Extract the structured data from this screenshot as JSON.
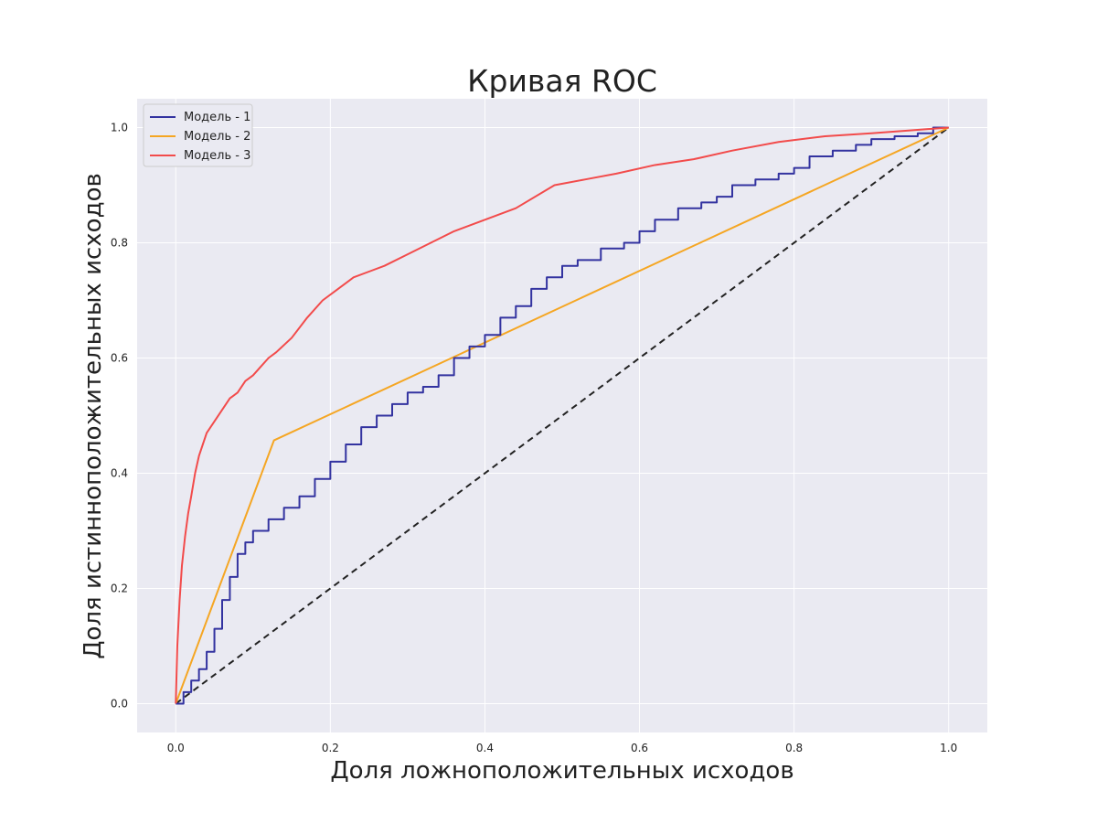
{
  "chart_data": {
    "type": "line",
    "title": "Кривая ROC",
    "xlabel": "Доля ложноположительных исходов",
    "ylabel": "Доля истинноположительных исходов",
    "xlim": [
      -0.05,
      1.05
    ],
    "ylim": [
      -0.05,
      1.05
    ],
    "x_ticks": [
      "0.0",
      "0.2",
      "0.4",
      "0.6",
      "0.8",
      "1.0"
    ],
    "y_ticks": [
      "0.0",
      "0.2",
      "0.4",
      "0.6",
      "0.8",
      "1.0"
    ],
    "grid": true,
    "legend_position": "top-left",
    "background_color": "#eaeaf2",
    "series": [
      {
        "name": "Модель - 1",
        "color": "#3333a0",
        "step": true,
        "x": [
          0.0,
          0.01,
          0.02,
          0.03,
          0.04,
          0.05,
          0.06,
          0.07,
          0.08,
          0.09,
          0.1,
          0.12,
          0.14,
          0.16,
          0.18,
          0.2,
          0.22,
          0.24,
          0.26,
          0.28,
          0.3,
          0.32,
          0.34,
          0.36,
          0.38,
          0.4,
          0.42,
          0.44,
          0.46,
          0.48,
          0.5,
          0.52,
          0.55,
          0.58,
          0.6,
          0.62,
          0.65,
          0.68,
          0.7,
          0.72,
          0.75,
          0.78,
          0.8,
          0.82,
          0.85,
          0.88,
          0.9,
          0.93,
          0.96,
          0.98,
          1.0
        ],
        "y": [
          0.0,
          0.02,
          0.04,
          0.06,
          0.09,
          0.13,
          0.18,
          0.22,
          0.26,
          0.28,
          0.3,
          0.32,
          0.34,
          0.36,
          0.39,
          0.42,
          0.45,
          0.48,
          0.5,
          0.52,
          0.54,
          0.55,
          0.57,
          0.6,
          0.62,
          0.64,
          0.67,
          0.69,
          0.72,
          0.74,
          0.76,
          0.77,
          0.79,
          0.8,
          0.82,
          0.84,
          0.86,
          0.87,
          0.88,
          0.9,
          0.91,
          0.92,
          0.93,
          0.95,
          0.96,
          0.97,
          0.98,
          0.985,
          0.99,
          1.0,
          1.0
        ]
      },
      {
        "name": "Модель - 2",
        "color": "#f5a623",
        "step": false,
        "x": [
          0.0,
          0.127,
          1.0
        ],
        "y": [
          0.0,
          0.457,
          1.0
        ]
      },
      {
        "name": "Модель - 3",
        "color": "#f24b4b",
        "step": false,
        "x": [
          0.0,
          0.002,
          0.005,
          0.008,
          0.012,
          0.016,
          0.02,
          0.025,
          0.03,
          0.035,
          0.04,
          0.05,
          0.06,
          0.07,
          0.08,
          0.09,
          0.1,
          0.11,
          0.12,
          0.13,
          0.15,
          0.17,
          0.19,
          0.21,
          0.23,
          0.25,
          0.27,
          0.3,
          0.33,
          0.36,
          0.4,
          0.44,
          0.49,
          0.53,
          0.57,
          0.62,
          0.67,
          0.72,
          0.78,
          0.84,
          0.9,
          0.95,
          1.0
        ],
        "y": [
          0.0,
          0.1,
          0.18,
          0.24,
          0.29,
          0.33,
          0.36,
          0.4,
          0.43,
          0.45,
          0.47,
          0.49,
          0.51,
          0.53,
          0.54,
          0.56,
          0.57,
          0.585,
          0.6,
          0.61,
          0.635,
          0.67,
          0.7,
          0.72,
          0.74,
          0.75,
          0.76,
          0.78,
          0.8,
          0.82,
          0.84,
          0.86,
          0.9,
          0.91,
          0.92,
          0.935,
          0.945,
          0.96,
          0.975,
          0.985,
          0.99,
          0.995,
          1.0
        ]
      },
      {
        "name": "",
        "color": "#222222",
        "dashed": true,
        "step": false,
        "x": [
          0.0,
          1.0
        ],
        "y": [
          0.0,
          1.0
        ]
      }
    ]
  }
}
